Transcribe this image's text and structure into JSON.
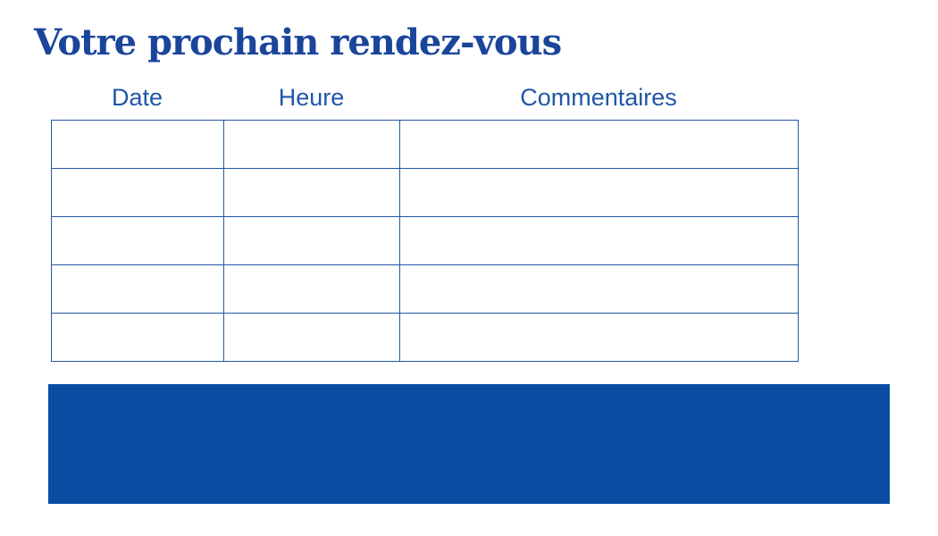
{
  "page": {
    "title": "Votre prochain rendez-vous"
  },
  "table": {
    "columns": [
      {
        "label": "Date"
      },
      {
        "label": "Heure"
      },
      {
        "label": "Commentaires"
      }
    ],
    "row_count": 5,
    "rows": [
      [
        "",
        "",
        ""
      ],
      [
        "",
        "",
        ""
      ],
      [
        "",
        "",
        ""
      ],
      [
        "",
        "",
        ""
      ],
      [
        "",
        "",
        ""
      ]
    ]
  },
  "colors": {
    "title-text": "#1a459b",
    "header-text": "#2156a8",
    "table-border": "#2456a4",
    "footer-block": "#0b4da2"
  }
}
